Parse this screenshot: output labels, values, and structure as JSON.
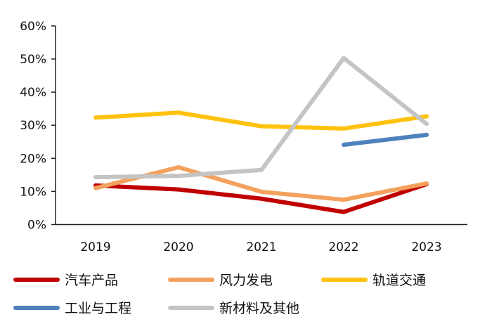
{
  "chart_data": {
    "type": "line",
    "categories": [
      "2019",
      "2020",
      "2021",
      "2022",
      "2023"
    ],
    "ylim": [
      0,
      60
    ],
    "yticks": [
      "0%",
      "10%",
      "20%",
      "30%",
      "40%",
      "50%",
      "60%"
    ],
    "ytick_values": [
      0,
      10,
      20,
      30,
      40,
      50,
      60
    ],
    "grid": false,
    "legend_position": "bottom",
    "series": [
      {
        "name": "汽车产品",
        "color": "#C00000",
        "values": [
          11.8,
          10.6,
          7.8,
          3.8,
          12.2
        ]
      },
      {
        "name": "风力发电",
        "color": "#F4A15D",
        "values": [
          11.0,
          17.3,
          9.9,
          7.5,
          12.4
        ]
      },
      {
        "name": "轨道交通",
        "color": "#FFC20E",
        "values": [
          32.3,
          33.8,
          29.7,
          29.0,
          32.7
        ]
      },
      {
        "name": "工业与工程",
        "color": "#4E81BD",
        "values": [
          null,
          null,
          null,
          24.1,
          27.1
        ]
      },
      {
        "name": "新材料及其他",
        "color": "#C4C4C4",
        "values": [
          14.3,
          14.7,
          16.5,
          50.3,
          30.4
        ]
      }
    ]
  }
}
